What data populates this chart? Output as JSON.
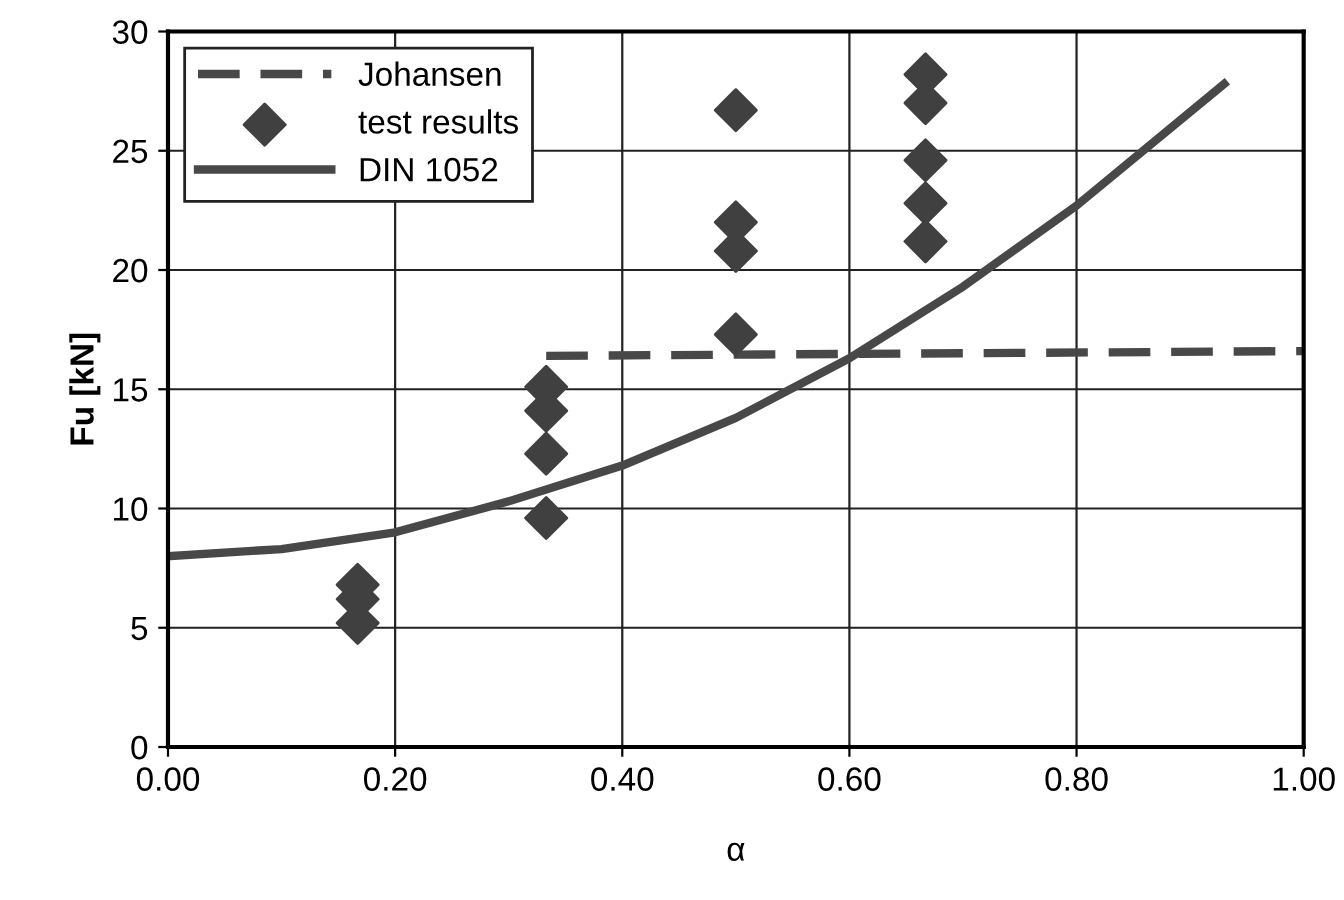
{
  "chart_data": {
    "type": "line",
    "xlabel": "α",
    "ylabel": "Fu [kN]",
    "xlim": [
      0,
      1
    ],
    "ylim": [
      0,
      30
    ],
    "xticks": [
      {
        "value": 0,
        "label": "0.00"
      },
      {
        "value": 0.2,
        "label": "0.20"
      },
      {
        "value": 0.4,
        "label": "0.40"
      },
      {
        "value": 0.6,
        "label": "0.60"
      },
      {
        "value": 0.8,
        "label": "0.80"
      },
      {
        "value": 1,
        "label": "1.00"
      }
    ],
    "yticks": [
      0,
      5,
      10,
      15,
      20,
      25,
      30
    ],
    "grid": true,
    "legend": "top left",
    "series": [
      {
        "name": "Johansen",
        "line_style": "dashed",
        "marker": "none",
        "color": "#484848",
        "x": [
          0.333,
          1.0
        ],
        "values": [
          16.4,
          16.6
        ]
      },
      {
        "name": "test results",
        "type": "scatter",
        "marker": "diamond",
        "color": "#404040",
        "x": [
          0.167,
          0.167,
          0.167,
          0.333,
          0.333,
          0.333,
          0.333,
          0.5,
          0.5,
          0.5,
          0.5,
          0.667,
          0.667,
          0.667,
          0.667,
          0.667
        ],
        "values": [
          5.2,
          6.2,
          6.8,
          9.6,
          12.3,
          14.1,
          15.1,
          17.3,
          20.8,
          22.0,
          26.7,
          21.2,
          22.8,
          24.6,
          27.0,
          28.2
        ]
      },
      {
        "name": "DIN 1052",
        "line_style": "solid",
        "marker": "none",
        "color": "#484848",
        "x": [
          0,
          0.1,
          0.2,
          0.3,
          0.4,
          0.5,
          0.6,
          0.7,
          0.8,
          0.93
        ],
        "values": [
          8.0,
          8.3,
          9.0,
          10.3,
          11.8,
          13.8,
          16.3,
          19.3,
          22.7,
          27.8
        ]
      }
    ]
  }
}
